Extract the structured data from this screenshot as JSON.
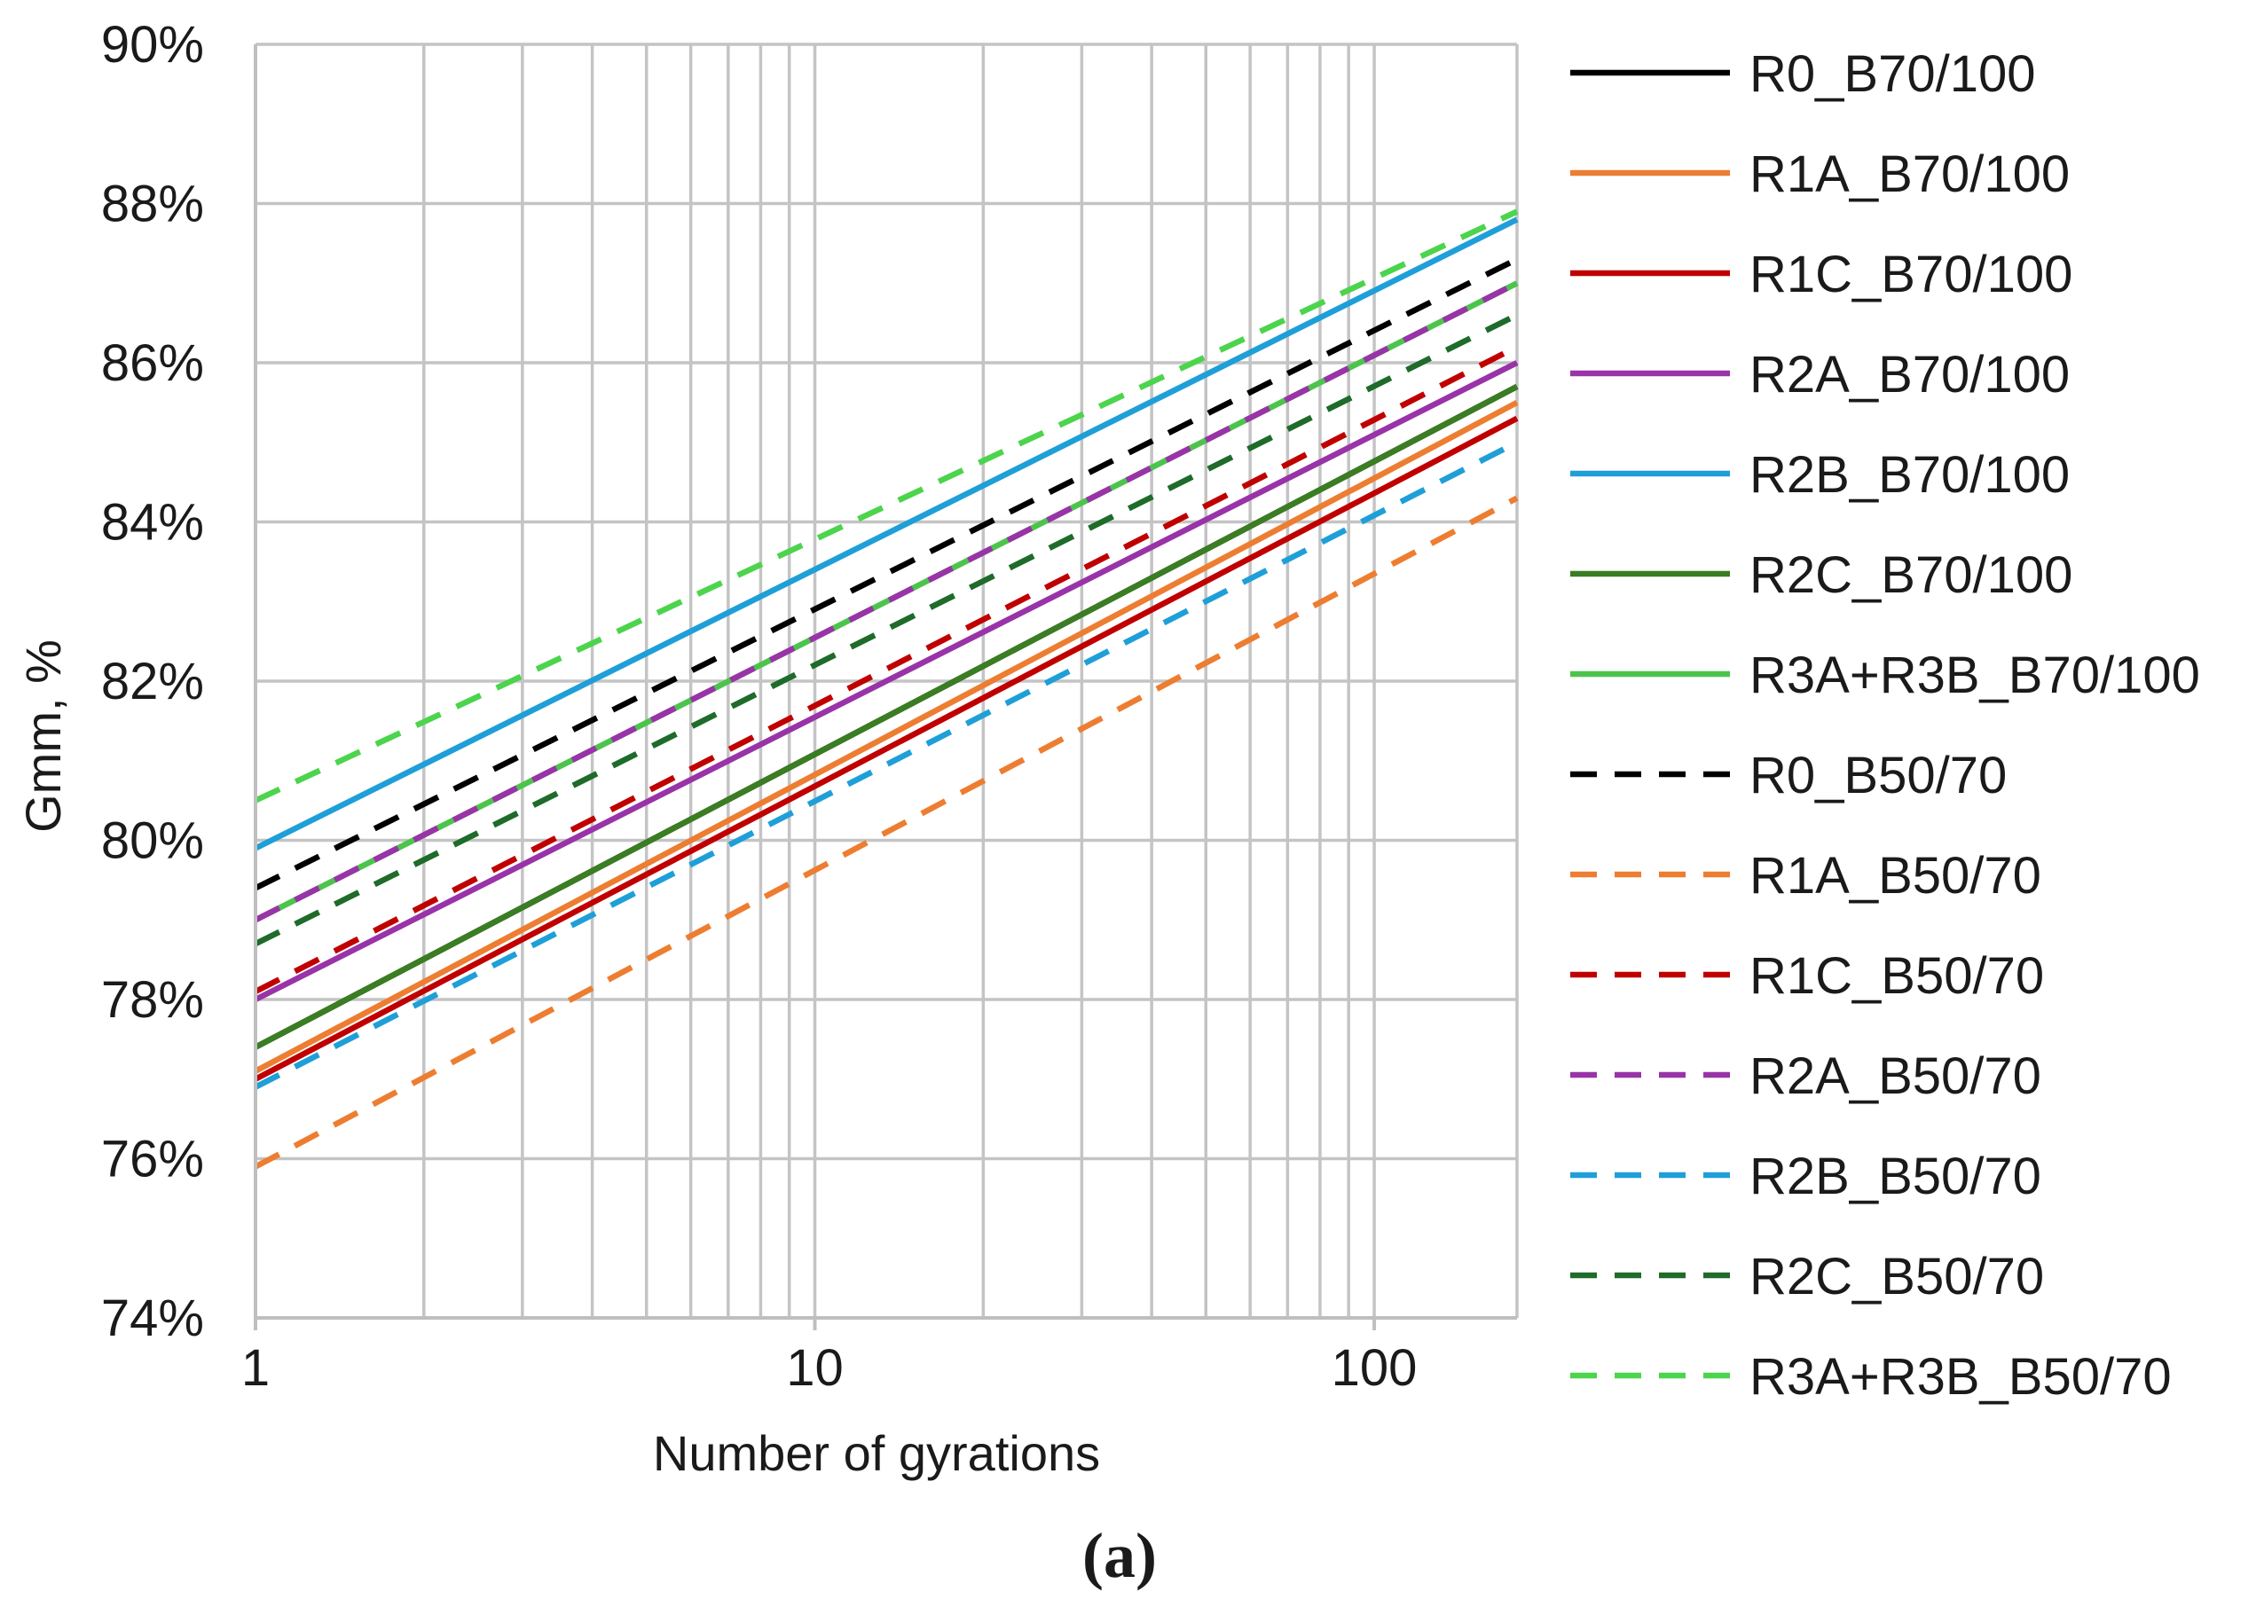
{
  "chart_data": {
    "type": "line",
    "title": "",
    "xlabel": "Number of gyrations",
    "ylabel": "Gmm, %",
    "xscale": "log",
    "xlim": [
      1,
      180
    ],
    "ylim": [
      74,
      90
    ],
    "x_ticks": [
      {
        "value": 1,
        "label": "1"
      },
      {
        "value": 10,
        "label": "10"
      },
      {
        "value": 100,
        "label": "100"
      }
    ],
    "y_ticks": [
      {
        "value": 74,
        "label": "74%"
      },
      {
        "value": 76,
        "label": "76%"
      },
      {
        "value": 78,
        "label": "78%"
      },
      {
        "value": 80,
        "label": "80%"
      },
      {
        "value": 82,
        "label": "82%"
      },
      {
        "value": 84,
        "label": "84%"
      },
      {
        "value": 86,
        "label": "86%"
      },
      {
        "value": 88,
        "label": "88%"
      },
      {
        "value": 90,
        "label": "90%"
      }
    ],
    "grid": true,
    "legend_position": "right",
    "caption": "(a)",
    "series": [
      {
        "name": "R0_B70/100",
        "color": "#000000",
        "dash": "solid",
        "x": [
          1,
          180
        ],
        "y": [
          77.4,
          85.7
        ]
      },
      {
        "name": "R1A_B70/100",
        "color": "#ED7D31",
        "dash": "solid",
        "x": [
          1,
          180
        ],
        "y": [
          77.1,
          85.5
        ]
      },
      {
        "name": "R1C_B70/100",
        "color": "#C00000",
        "dash": "solid",
        "x": [
          1,
          180
        ],
        "y": [
          77.0,
          85.3
        ]
      },
      {
        "name": "R2A_B70/100",
        "color": "#9933A8",
        "dash": "solid",
        "x": [
          1,
          180
        ],
        "y": [
          78.0,
          86.0
        ]
      },
      {
        "name": "R2B_B70/100",
        "color": "#1F9FD8",
        "dash": "solid",
        "x": [
          1,
          180
        ],
        "y": [
          79.9,
          87.8
        ]
      },
      {
        "name": "R2C_B70/100",
        "color": "#3A7D22",
        "dash": "solid",
        "x": [
          1,
          180
        ],
        "y": [
          77.4,
          85.7
        ]
      },
      {
        "name": "R3A+R3B_B70/100",
        "color": "#4CC44C",
        "dash": "solid",
        "x": [
          1,
          180
        ],
        "y": [
          79.0,
          87.0
        ]
      },
      {
        "name": "R0_B50/70",
        "color": "#000000",
        "dash": "dashed",
        "x": [
          1,
          180
        ],
        "y": [
          79.4,
          87.3
        ]
      },
      {
        "name": "R1A_B50/70",
        "color": "#ED7D31",
        "dash": "dashed",
        "x": [
          1,
          180
        ],
        "y": [
          75.9,
          84.3
        ]
      },
      {
        "name": "R1C_B50/70",
        "color": "#C00000",
        "dash": "dashed",
        "x": [
          1,
          180
        ],
        "y": [
          78.1,
          86.2
        ]
      },
      {
        "name": "R2A_B50/70",
        "color": "#9933A8",
        "dash": "dashed",
        "x": [
          1,
          180
        ],
        "y": [
          79.0,
          87.0
        ]
      },
      {
        "name": "R2B_B50/70",
        "color": "#1F9FD8",
        "dash": "dashed",
        "x": [
          1,
          180
        ],
        "y": [
          76.9,
          85.0
        ]
      },
      {
        "name": "R2C_B50/70",
        "color": "#1E6B2A",
        "dash": "dashed",
        "x": [
          1,
          180
        ],
        "y": [
          78.7,
          86.6
        ]
      },
      {
        "name": "R3A+R3B_B50/70",
        "color": "#4CD44C",
        "dash": "dashed",
        "x": [
          1,
          180
        ],
        "y": [
          80.5,
          87.9
        ]
      }
    ]
  }
}
